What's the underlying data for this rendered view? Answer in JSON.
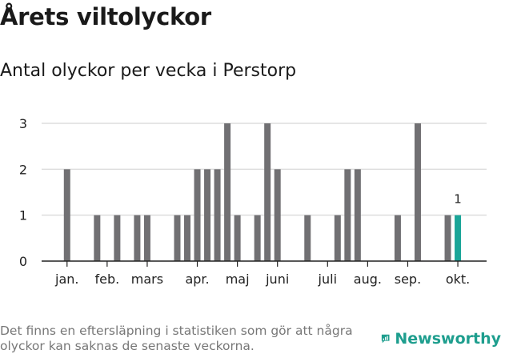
{
  "title": "Årets viltolyckor",
  "subtitle": "Antal olyckor per vecka i Perstorp",
  "footnote": "Det finns en eftersläpning i statistiken som gör att några olyckor kan saknas de senaste veckorna.",
  "brand": {
    "name": "Newsworthy",
    "color": "#1e9e8e"
  },
  "chart_data": {
    "type": "bar",
    "title": "Årets viltolyckor",
    "subtitle": "Antal olyckor per vecka i Perstorp",
    "ylim": [
      0,
      3
    ],
    "y_ticks": [
      0,
      1,
      2,
      3
    ],
    "grid": true,
    "x_tick_labels": [
      {
        "label": "jan.",
        "at_week": 2
      },
      {
        "label": "feb.",
        "at_week": 6
      },
      {
        "label": "mars",
        "at_week": 10
      },
      {
        "label": "apr.",
        "at_week": 15
      },
      {
        "label": "maj",
        "at_week": 19
      },
      {
        "label": "juni",
        "at_week": 23
      },
      {
        "label": "juli",
        "at_week": 28
      },
      {
        "label": "aug.",
        "at_week": 32
      },
      {
        "label": "sep.",
        "at_week": 36
      },
      {
        "label": "okt.",
        "at_week": 41
      }
    ],
    "weeks": [
      1,
      2,
      3,
      4,
      5,
      6,
      7,
      8,
      9,
      10,
      11,
      12,
      13,
      14,
      15,
      16,
      17,
      18,
      19,
      20,
      21,
      22,
      23,
      24,
      25,
      26,
      27,
      28,
      29,
      30,
      31,
      32,
      33,
      34,
      35,
      36,
      37,
      38,
      39,
      40,
      41,
      42
    ],
    "values": [
      0,
      2,
      0,
      0,
      1,
      0,
      1,
      0,
      1,
      1,
      0,
      0,
      1,
      1,
      2,
      2,
      2,
      3,
      1,
      0,
      1,
      3,
      2,
      0,
      0,
      1,
      0,
      0,
      1,
      2,
      2,
      0,
      0,
      0,
      1,
      0,
      3,
      0,
      0,
      1,
      1,
      0
    ],
    "highlight": {
      "week": 41,
      "value": 1,
      "label": "1"
    },
    "colors": {
      "bar": "#717073",
      "highlight": "#1aa598",
      "grid": "#dddddd",
      "axis": "#222222"
    }
  }
}
